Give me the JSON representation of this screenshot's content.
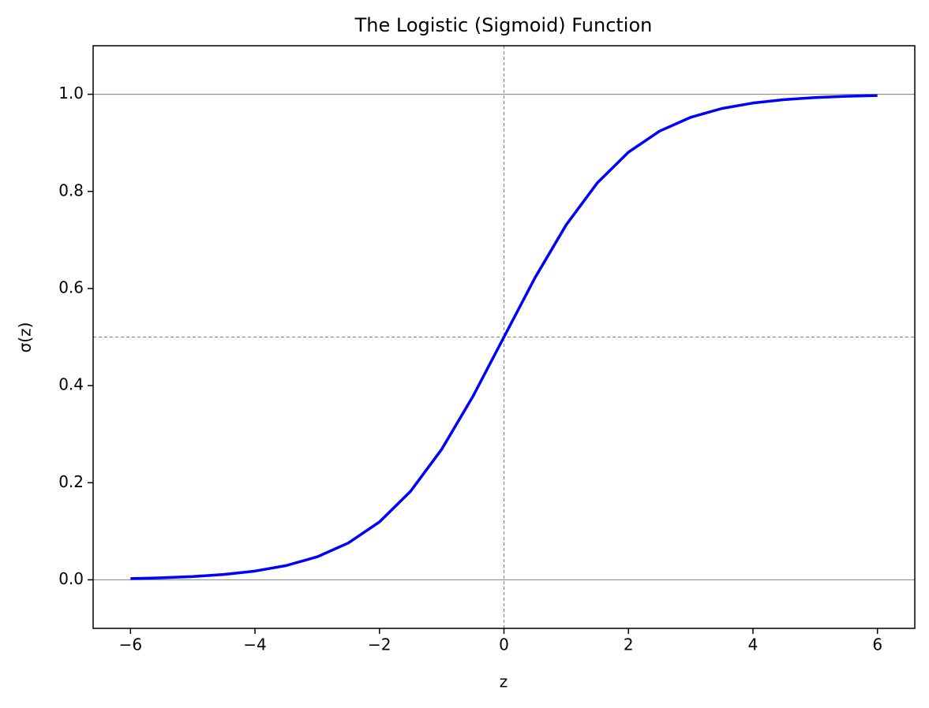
{
  "chart_data": {
    "type": "line",
    "title": "The Logistic (Sigmoid) Function",
    "xlabel": "z",
    "ylabel": "σ(z)",
    "x": [
      -6,
      -5.5,
      -5,
      -4.5,
      -4,
      -3.5,
      -3,
      -2.5,
      -2,
      -1.5,
      -1,
      -0.5,
      0,
      0.5,
      1,
      1.5,
      2,
      2.5,
      3,
      3.5,
      4,
      4.5,
      5,
      5.5,
      6
    ],
    "values": [
      0.0025,
      0.0041,
      0.0067,
      0.011,
      0.018,
      0.0293,
      0.0474,
      0.0759,
      0.1192,
      0.1824,
      0.2689,
      0.3775,
      0.5,
      0.6225,
      0.7311,
      0.8176,
      0.8808,
      0.9241,
      0.9526,
      0.9707,
      0.982,
      0.989,
      0.9933,
      0.9959,
      0.9975
    ],
    "color": "#0000ff",
    "xlim": [
      -6.6,
      6.6
    ],
    "ylim": [
      -0.1,
      1.1
    ],
    "xticks": [
      {
        "value": -6,
        "label": "−6"
      },
      {
        "value": -4,
        "label": "−4"
      },
      {
        "value": -2,
        "label": "−2"
      },
      0,
      2,
      4,
      6
    ],
    "yticks": [
      {
        "value": 0,
        "label": "0.0"
      },
      0.2,
      0.4,
      0.6,
      0.8,
      {
        "value": 1,
        "label": "1.0"
      }
    ],
    "hlines": [
      {
        "value": 0,
        "style": "solid"
      },
      {
        "value": 1,
        "style": "solid"
      },
      {
        "value": 0.5,
        "style": "dashed"
      }
    ],
    "vlines": [
      {
        "value": 0,
        "style": "dashed"
      }
    ]
  }
}
